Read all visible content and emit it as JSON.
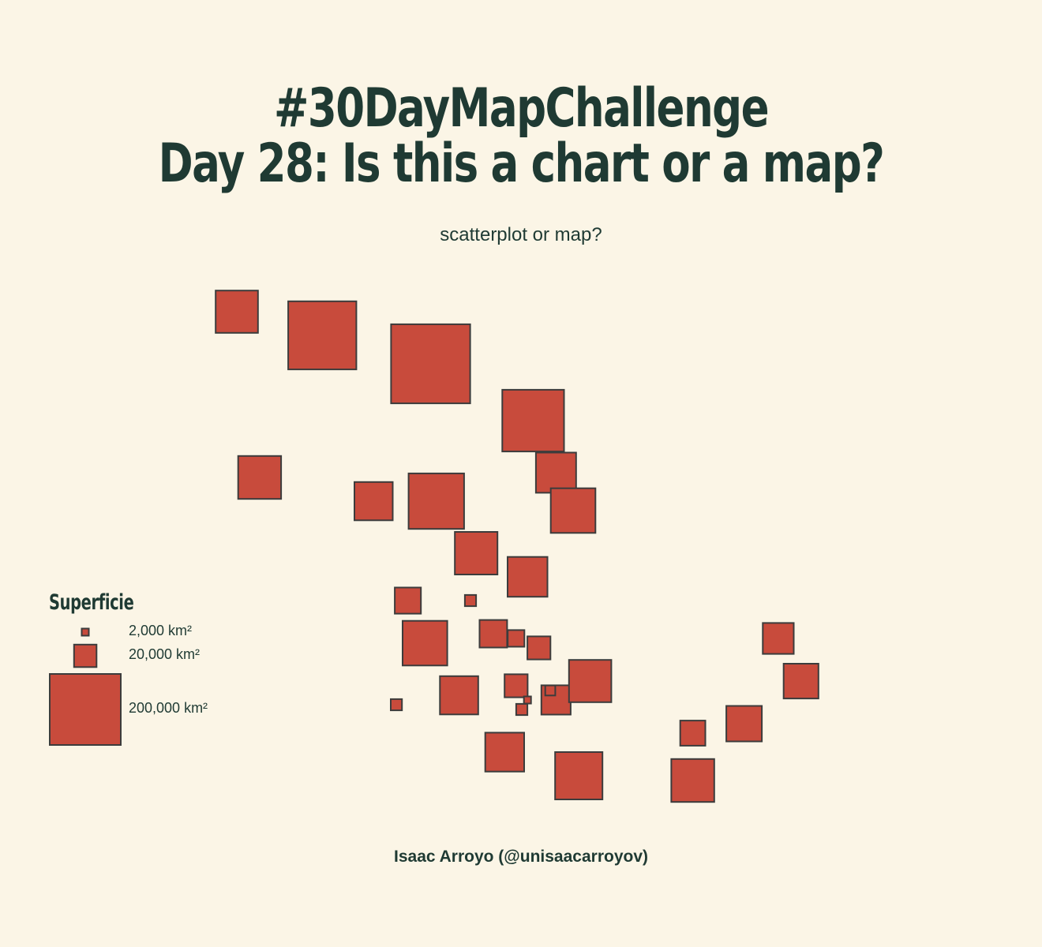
{
  "title": {
    "line1": "#30DayMapChallenge",
    "line2": "Day 28: Is this a chart or a map?"
  },
  "subtitle": "scatterplot or map?",
  "caption": "Isaac Arroyo (@unisaacarroyov)",
  "legend": {
    "title": "Superficie",
    "items": [
      {
        "label": "2,000 km²",
        "area_km2": 2000
      },
      {
        "label": "20,000 km²",
        "area_km2": 20000
      },
      {
        "label": "200,000 km²",
        "area_km2": 200000
      }
    ]
  },
  "colors": {
    "background": "#FBF5E6",
    "square_fill": "#C84B3C",
    "square_stroke": "#3C3C3C",
    "text": "#1F3A33"
  },
  "chart_data": {
    "type": "scatter",
    "title": "#30DayMapChallenge Day 28: Is this a chart or a map?",
    "subtitle": "scatterplot or map?",
    "size_encoding": "area_km2",
    "legend_title": "Superficie",
    "legend_placement": "left",
    "grid": false,
    "axes": false,
    "points": [
      {
        "x": 0.0,
        "y": 1.0,
        "area_km2": 71000
      },
      {
        "x": 0.15,
        "y": 0.95,
        "area_km2": 184000
      },
      {
        "x": 0.34,
        "y": 0.89,
        "area_km2": 248000
      },
      {
        "x": 0.52,
        "y": 0.77,
        "area_km2": 151000
      },
      {
        "x": 0.04,
        "y": 0.65,
        "area_km2": 73000
      },
      {
        "x": 0.24,
        "y": 0.6,
        "area_km2": 58000
      },
      {
        "x": 0.35,
        "y": 0.6,
        "area_km2": 122000
      },
      {
        "x": 0.56,
        "y": 0.66,
        "area_km2": 64000
      },
      {
        "x": 0.59,
        "y": 0.58,
        "area_km2": 79000
      },
      {
        "x": 0.42,
        "y": 0.49,
        "area_km2": 72000
      },
      {
        "x": 0.51,
        "y": 0.44,
        "area_km2": 63000
      },
      {
        "x": 0.3,
        "y": 0.39,
        "area_km2": 27000
      },
      {
        "x": 0.41,
        "y": 0.39,
        "area_km2": 5000
      },
      {
        "x": 0.33,
        "y": 0.3,
        "area_km2": 79000
      },
      {
        "x": 0.45,
        "y": 0.32,
        "area_km2": 30000
      },
      {
        "x": 0.49,
        "y": 0.31,
        "area_km2": 11000
      },
      {
        "x": 0.53,
        "y": 0.29,
        "area_km2": 21000
      },
      {
        "x": 0.28,
        "y": 0.17,
        "area_km2": 5000
      },
      {
        "x": 0.39,
        "y": 0.19,
        "area_km2": 58000
      },
      {
        "x": 0.49,
        "y": 0.21,
        "area_km2": 21000
      },
      {
        "x": 0.51,
        "y": 0.18,
        "area_km2": 2000
      },
      {
        "x": 0.5,
        "y": 0.16,
        "area_km2": 5000
      },
      {
        "x": 0.56,
        "y": 0.18,
        "area_km2": 34000
      },
      {
        "x": 0.55,
        "y": 0.2,
        "area_km2": 4000
      },
      {
        "x": 0.62,
        "y": 0.22,
        "area_km2": 71000
      },
      {
        "x": 0.47,
        "y": 0.07,
        "area_km2": 60000
      },
      {
        "x": 0.6,
        "y": 0.02,
        "area_km2": 89000
      },
      {
        "x": 0.8,
        "y": 0.01,
        "area_km2": 73000
      },
      {
        "x": 0.8,
        "y": 0.11,
        "area_km2": 25000
      },
      {
        "x": 0.89,
        "y": 0.13,
        "area_km2": 50000
      },
      {
        "x": 0.95,
        "y": 0.31,
        "area_km2": 38000
      },
      {
        "x": 0.99,
        "y": 0.22,
        "area_km2": 48000
      }
    ]
  }
}
